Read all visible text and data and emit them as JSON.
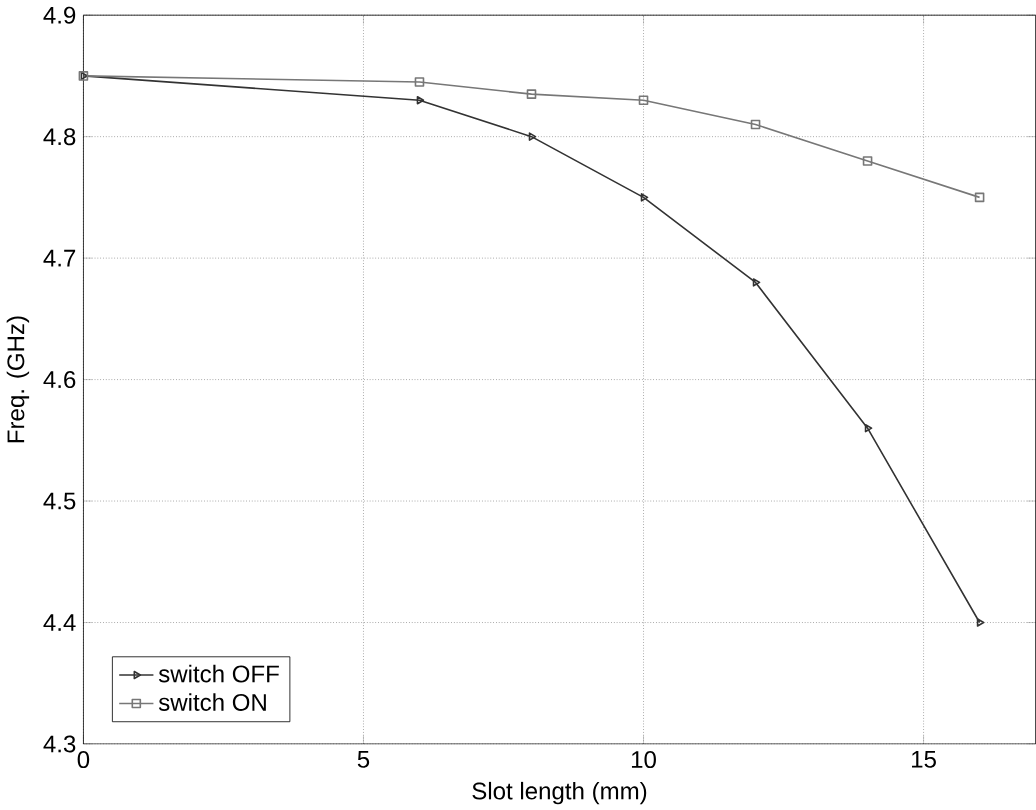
{
  "chart_data": {
    "type": "line",
    "xlabel": "Slot length (mm)",
    "ylabel": "Freq. (GHz)",
    "xlim": [
      0,
      17
    ],
    "ylim": [
      4.3,
      4.9
    ],
    "xticks": [
      0,
      5,
      10,
      15
    ],
    "yticks": [
      4.3,
      4.4,
      4.5,
      4.6,
      4.7,
      4.8,
      4.9
    ],
    "grid": true,
    "legend": "bottom left",
    "series": [
      {
        "name": "switch OFF",
        "color": "#333333",
        "marker": "triangle",
        "x": [
          0,
          6,
          8,
          10,
          12,
          14,
          16
        ],
        "values": [
          4.85,
          4.83,
          4.8,
          4.75,
          4.68,
          4.56,
          4.4
        ]
      },
      {
        "name": "switch ON",
        "color": "#777777",
        "marker": "square",
        "x": [
          0,
          6,
          8,
          10,
          12,
          14,
          16
        ],
        "values": [
          4.85,
          4.845,
          4.835,
          4.83,
          4.81,
          4.78,
          4.75
        ]
      }
    ]
  }
}
